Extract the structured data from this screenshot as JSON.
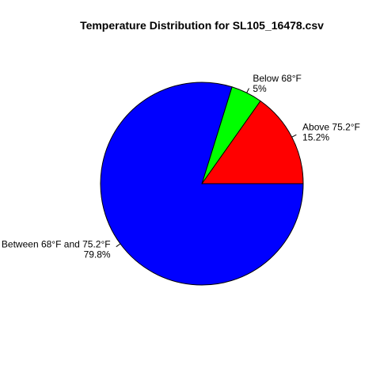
{
  "chart_data": {
    "type": "pie",
    "title": "Temperature Distribution for SL105_16478.csv",
    "slices": [
      {
        "label": "Above 75.2°F",
        "percent_label": "15.2%",
        "value": 15.2,
        "color": "#ff0000"
      },
      {
        "label": "Below 68°F",
        "percent_label": "5%",
        "value": 5.0,
        "color": "#00ff00"
      },
      {
        "label": "Between 68°F and 75.2°F",
        "percent_label": "79.8%",
        "value": 79.8,
        "color": "#0000ff"
      }
    ],
    "start_angle_deg": 0,
    "direction": "counterclockwise",
    "legend": "none"
  }
}
